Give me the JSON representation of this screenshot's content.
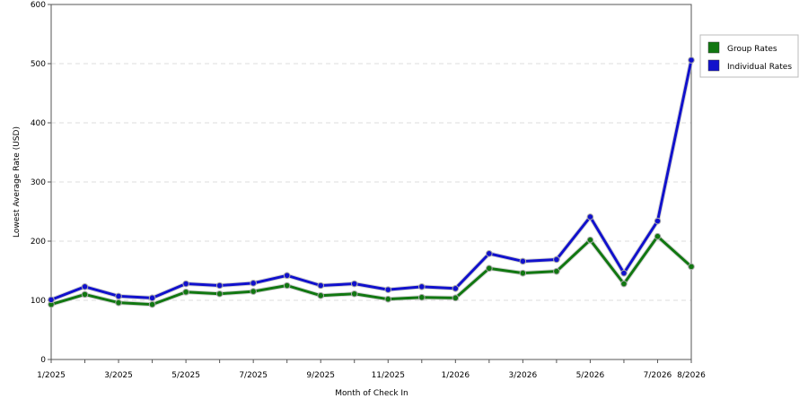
{
  "chart_data": {
    "type": "line",
    "xlabel": "Month of Check In",
    "ylabel": "Lowest Average Rate (USD)",
    "ylim": [
      0,
      600
    ],
    "y_ticks": [
      "0",
      "100",
      "200",
      "300",
      "400",
      "500",
      "600"
    ],
    "x_tick_labels": [
      "1/2025",
      "3/2025",
      "5/2025",
      "7/2025",
      "9/2025",
      "11/2025",
      "1/2026",
      "3/2026",
      "5/2026",
      "7/2026",
      "8/2026"
    ],
    "x_tick_index": [
      0,
      2,
      4,
      6,
      8,
      10,
      12,
      14,
      16,
      18,
      19
    ],
    "categories": [
      "1/2025",
      "2/2025",
      "3/2025",
      "4/2025",
      "5/2025",
      "6/2025",
      "7/2025",
      "8/2025",
      "9/2025",
      "10/2025",
      "11/2025",
      "12/2025",
      "1/2026",
      "2/2026",
      "3/2026",
      "4/2026",
      "5/2026",
      "6/2026",
      "7/2026",
      "8/2026"
    ],
    "series": [
      {
        "name": "Group Rates",
        "color": "#117711",
        "values": [
          93,
          110,
          96,
          93,
          114,
          111,
          115,
          125,
          108,
          111,
          102,
          105,
          104,
          154,
          146,
          149,
          202,
          128,
          208,
          157
        ]
      },
      {
        "name": "Individual Rates",
        "color": "#1111cc",
        "values": [
          101,
          123,
          107,
          104,
          128,
          125,
          129,
          142,
          125,
          128,
          118,
          123,
          120,
          179,
          166,
          169,
          241,
          146,
          234,
          506
        ]
      }
    ],
    "grid": "horizontal dashed",
    "legend_position": "right"
  }
}
